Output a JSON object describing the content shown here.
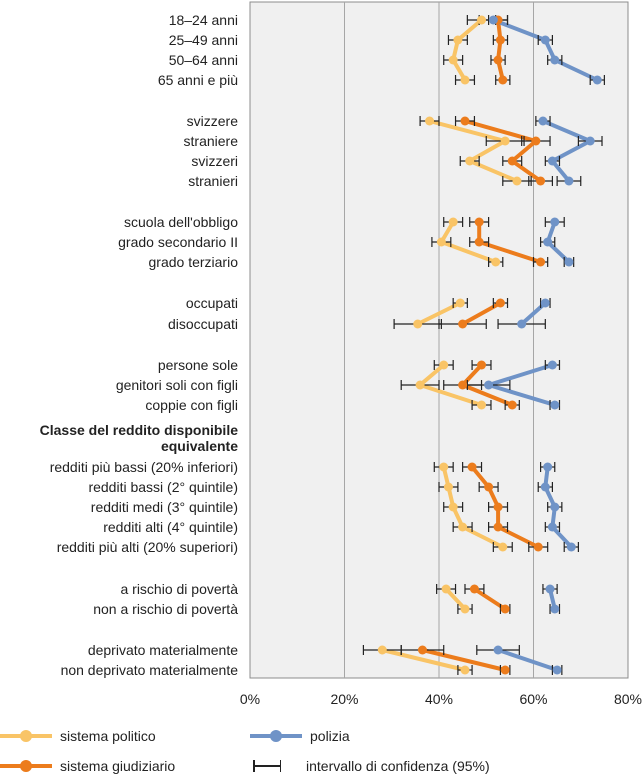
{
  "chart_data": {
    "type": "line",
    "orientation": "horizontal",
    "xlim": [
      0,
      80
    ],
    "xticks": [
      "0%",
      "20%",
      "40%",
      "60%",
      "80%"
    ],
    "categories": [
      "18–24 anni",
      "25–49 anni",
      "50–64 anni",
      "65 anni e più",
      "svizzere",
      "straniere",
      "svizzeri",
      "stranieri",
      "scuola dell'obbligo",
      "grado secondario II",
      "grado terziario",
      "occupati",
      "disoccupati",
      "persone sole",
      "genitori soli con figli",
      "coppie con figli",
      "redditi più bassi (20% inferiori)",
      "redditi bassi (2° quintile)",
      "redditi medi (3° quintile)",
      "redditi alti (4° quintile)",
      "redditi più alti (20% superiori)",
      "a rischio di povertà",
      "non a rischio di povertà",
      "deprivato materialmente",
      "non deprivato materialmente"
    ],
    "groups": [
      [
        0,
        1,
        2,
        3
      ],
      [
        4,
        5,
        6,
        7
      ],
      [
        8,
        9,
        10
      ],
      [
        11,
        12
      ],
      [
        13,
        14,
        15
      ],
      [
        16,
        17,
        18,
        19,
        20
      ],
      [
        21,
        22
      ],
      [
        23,
        24
      ]
    ],
    "group_header": {
      "before_index": 16,
      "lines": [
        "Classe del reddito disponibile",
        "equivalente"
      ]
    },
    "series": [
      {
        "name": "sistema politico",
        "color": "#f9c466",
        "values": [
          49,
          44,
          43,
          45.5,
          38,
          54,
          46.5,
          56.5,
          43,
          40.5,
          52,
          44.5,
          35.5,
          41,
          36,
          49,
          41,
          42,
          43,
          45,
          53.5,
          41.5,
          45.5,
          28,
          45.5
        ],
        "ci": [
          3,
          2,
          2,
          2,
          2,
          4,
          2,
          3,
          2,
          2,
          1.5,
          1.5,
          5,
          2,
          4,
          2,
          2,
          2,
          2,
          2,
          2,
          2,
          1.5,
          4,
          1.5
        ]
      },
      {
        "name": "sistema giudiziario",
        "color": "#ec7c1c",
        "values": [
          52.5,
          53,
          52.5,
          53.5,
          45.5,
          60.5,
          55.5,
          61.5,
          48.5,
          48.5,
          61.5,
          53,
          45,
          49,
          45,
          55.5,
          47,
          50.5,
          52.5,
          52.5,
          61,
          47.5,
          54,
          36.5,
          54
        ],
        "ci": [
          2,
          1.5,
          1.5,
          1.5,
          2,
          3,
          2,
          2.5,
          2,
          2,
          1.5,
          1.5,
          5,
          2,
          4,
          1.5,
          2,
          2,
          2,
          2,
          2,
          2,
          1,
          4.5,
          1
        ]
      },
      {
        "name": "polizia",
        "color": "#6f93c7",
        "values": [
          51.5,
          62.5,
          64.5,
          73.5,
          62,
          72,
          64,
          67.5,
          64.5,
          63,
          67.5,
          62.5,
          57.5,
          64,
          50.5,
          64.5,
          63,
          62.5,
          64.5,
          64,
          68,
          63.5,
          64.5,
          52.5,
          65
        ],
        "ci": [
          3,
          1.5,
          1.5,
          1.5,
          1.5,
          2.5,
          1.5,
          2.5,
          2,
          1.5,
          1,
          1,
          5,
          1.5,
          4.5,
          1,
          1.5,
          1.5,
          1.5,
          1.5,
          1.5,
          1.5,
          1,
          4.5,
          1
        ]
      }
    ],
    "legend": {
      "series_labels": [
        "sistema politico",
        "polizia",
        "sistema giudiziario"
      ],
      "ci_label": "intervallo di confidenza (95%)"
    },
    "grid": true,
    "legend_position": "bottom"
  }
}
